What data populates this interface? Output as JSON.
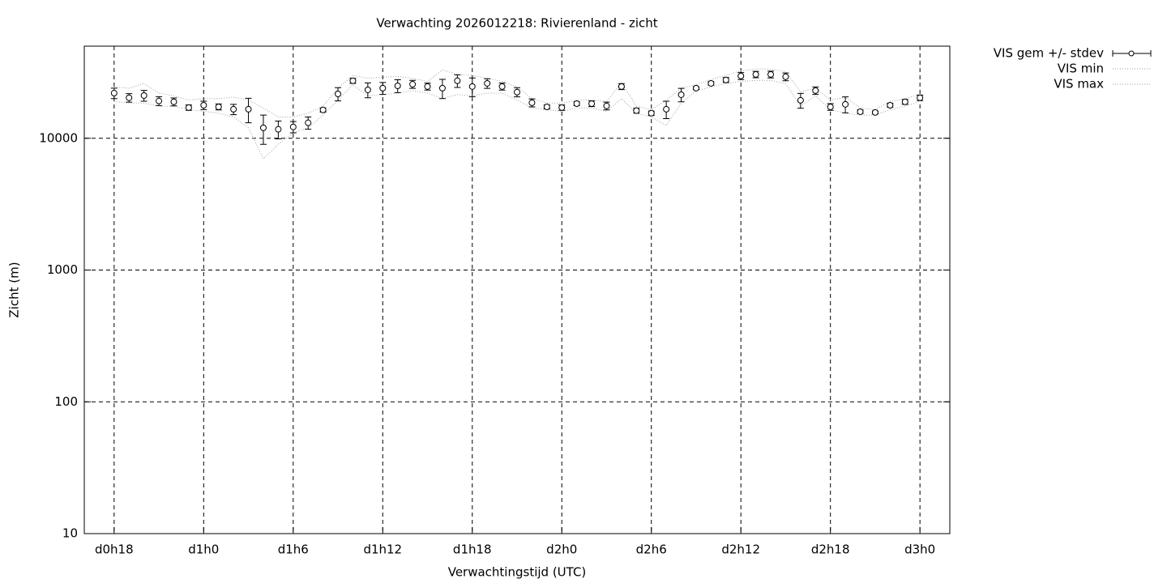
{
  "chart_data": {
    "type": "errorbar",
    "title": "Verwachting 2026012218: Rivierenland - zicht",
    "x_label": "Verwachtingstijd (UTC)",
    "y_label": "Zicht (m)",
    "log_y": true,
    "grid": true,
    "legend": "outside-top-right",
    "xlim": [
      16,
      74
    ],
    "ylim": [
      10,
      50000
    ],
    "xticks": [
      {
        "value": 18,
        "label": "d0h18"
      },
      {
        "value": 24,
        "label": "d1h0"
      },
      {
        "value": 30,
        "label": "d1h6"
      },
      {
        "value": 36,
        "label": "d1h12"
      },
      {
        "value": 42,
        "label": "d1h18"
      },
      {
        "value": 48,
        "label": "d2h0"
      },
      {
        "value": 54,
        "label": "d2h6"
      },
      {
        "value": 60,
        "label": "d2h12"
      },
      {
        "value": 66,
        "label": "d2h18"
      },
      {
        "value": 72,
        "label": "d3h0"
      }
    ],
    "yticks": [
      10,
      100,
      1000,
      10000
    ],
    "x": [
      18,
      19,
      20,
      21,
      22,
      23,
      24,
      25,
      26,
      27,
      28,
      29,
      30,
      31,
      32,
      33,
      34,
      35,
      36,
      37,
      38,
      39,
      40,
      41,
      42,
      43,
      44,
      45,
      46,
      47,
      48,
      49,
      50,
      51,
      52,
      53,
      54,
      55,
      56,
      57,
      58,
      59,
      60,
      61,
      62,
      63,
      64,
      65,
      66,
      67,
      68,
      69,
      70,
      71,
      72
    ],
    "series": [
      {
        "name": "VIS gem +/- stdev",
        "color": "#000000",
        "values": [
          22000,
          20300,
          21100,
          19200,
          18900,
          17100,
          17800,
          17300,
          16600,
          16600,
          12000,
          11700,
          12200,
          13100,
          16400,
          21700,
          27300,
          23300,
          24000,
          25000,
          25700,
          24700,
          24000,
          27300,
          24700,
          26100,
          24700,
          22400,
          18600,
          17300,
          17100,
          18300,
          18300,
          17600,
          24700,
          16200,
          15500,
          16600,
          21400,
          24000,
          26100,
          27700,
          29700,
          30500,
          30500,
          29300,
          19400,
          23000,
          17300,
          18100,
          15900,
          15700,
          17800,
          18900,
          20300
        ],
        "errors": [
          2000,
          1500,
          2000,
          1500,
          1300,
          800,
          1300,
          900,
          1500,
          3500,
          3000,
          1800,
          1200,
          1400,
          600,
          2500,
          1200,
          3000,
          2500,
          2800,
          1800,
          1500,
          4000,
          3000,
          4000,
          2200,
          1500,
          1800,
          1300,
          600,
          800,
          600,
          900,
          1200,
          1300,
          700,
          600,
          2500,
          2500,
          600,
          800,
          1200,
          1800,
          1700,
          1800,
          2000,
          2500,
          1500,
          1000,
          2500,
          500,
          400,
          600,
          800,
          1000
        ]
      },
      {
        "name": "VIS min",
        "color": "#a0a0a0",
        "values": [
          19000,
          18500,
          18500,
          17500,
          17500,
          16500,
          16000,
          15500,
          14500,
          12000,
          7000,
          9000,
          11000,
          12000,
          15000,
          19500,
          25500,
          21000,
          21500,
          22000,
          23000,
          22000,
          20000,
          21500,
          21000,
          22000,
          22000,
          19500,
          17000,
          16500,
          16000,
          17000,
          17000,
          16000,
          20000,
          15500,
          14500,
          12500,
          18500,
          23000,
          24500,
          26000,
          27000,
          27500,
          27500,
          26000,
          17500,
          21000,
          16500,
          15500,
          15000,
          15000,
          16500,
          17500,
          19000
        ]
      },
      {
        "name": "VIS max",
        "color": "#a0a0a0",
        "values": [
          24500,
          24000,
          26000,
          22000,
          21000,
          19500,
          20000,
          20000,
          20500,
          19500,
          17000,
          14500,
          14500,
          15500,
          17500,
          24000,
          30000,
          28500,
          29000,
          29500,
          28500,
          27000,
          33000,
          30500,
          30000,
          28500,
          27000,
          24500,
          20000,
          18500,
          18500,
          19500,
          19500,
          19000,
          26500,
          17500,
          16500,
          19500,
          24000,
          25500,
          28000,
          30000,
          32500,
          33500,
          33500,
          32000,
          22500,
          24000,
          19500,
          20500,
          17000,
          16500,
          19000,
          20000,
          21500
        ]
      }
    ]
  }
}
